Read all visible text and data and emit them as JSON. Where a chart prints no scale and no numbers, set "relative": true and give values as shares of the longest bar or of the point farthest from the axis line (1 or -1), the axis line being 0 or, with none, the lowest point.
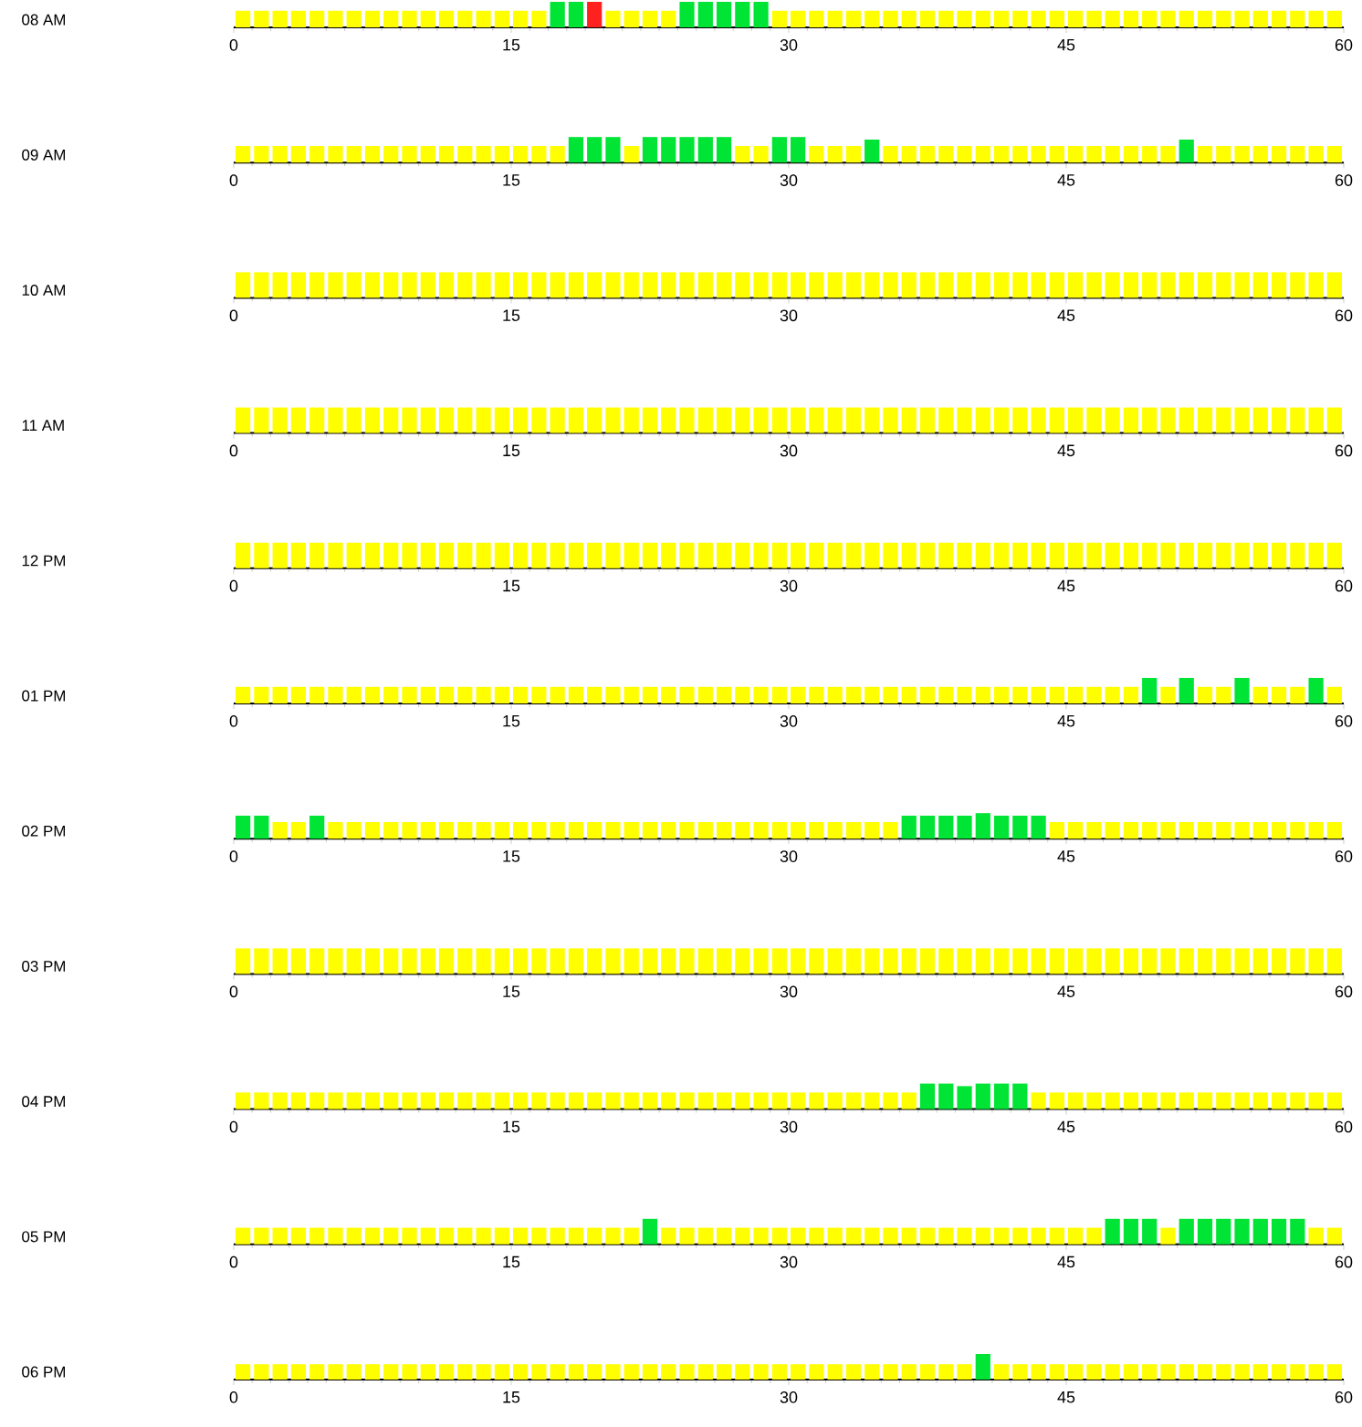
{
  "chart_data": [
    {
      "type": "bar",
      "relative": true,
      "ylabel": "08 AM",
      "xlim": [
        0,
        60
      ],
      "xticks": [
        0,
        15,
        30,
        45,
        60
      ],
      "series": [
        {
          "color": "#ffff00",
          "x": [
            0.5,
            1.5,
            2.5,
            3.5,
            4.5,
            5.5,
            6.5,
            7.5,
            8.5,
            9.5,
            10.5,
            11.5,
            12.5,
            13.5,
            14.5,
            15.5,
            16.5,
            20.5,
            21.5,
            22.5,
            23.5,
            29.5,
            30.5,
            31.5,
            32.5,
            33.5,
            34.5,
            35.5,
            36.5,
            37.5,
            38.5,
            39.5,
            40.5,
            41.5,
            42.5,
            43.5,
            44.5,
            45.5,
            46.5,
            47.5,
            48.5,
            49.5,
            50.5,
            51.5,
            52.5,
            53.5,
            54.5,
            55.5,
            56.5,
            57.5,
            58.5,
            59.5
          ],
          "values": [
            0.65,
            0.65,
            0.65,
            0.65,
            0.65,
            0.65,
            0.65,
            0.65,
            0.65,
            0.65,
            0.65,
            0.65,
            0.65,
            0.65,
            0.65,
            0.65,
            0.65,
            0.65,
            0.65,
            0.65,
            0.65,
            0.65,
            0.65,
            0.65,
            0.65,
            0.65,
            0.65,
            0.65,
            0.65,
            0.65,
            0.65,
            0.65,
            0.65,
            0.65,
            0.65,
            0.65,
            0.65,
            0.65,
            0.65,
            0.65,
            0.65,
            0.65,
            0.65,
            0.65,
            0.65,
            0.65,
            0.65,
            0.65,
            0.65,
            0.65,
            0.65,
            0.65
          ]
        },
        {
          "color": "#00e436",
          "x": [
            17.5,
            18.5,
            24.5,
            25.5,
            26.5,
            27.5,
            28.5
          ],
          "values": [
            1,
            1,
            1,
            1,
            1,
            1,
            1
          ]
        },
        {
          "color": "#ff2020",
          "x": [
            19.5
          ],
          "values": [
            1
          ]
        }
      ]
    },
    {
      "type": "bar",
      "relative": true,
      "ylabel": "09 AM",
      "xlim": [
        0,
        60
      ],
      "xticks": [
        0,
        15,
        30,
        45,
        60
      ],
      "series": [
        {
          "color": "#ffff00",
          "x": [
            0.5,
            1.5,
            2.5,
            3.5,
            4.5,
            5.5,
            6.5,
            7.5,
            8.5,
            9.5,
            10.5,
            11.5,
            12.5,
            13.5,
            14.5,
            15.5,
            16.5,
            17.5,
            21.5,
            27.5,
            28.5,
            31.5,
            32.5,
            33.5,
            35.5,
            36.5,
            37.5,
            38.5,
            39.5,
            40.5,
            41.5,
            42.5,
            43.5,
            44.5,
            45.5,
            46.5,
            47.5,
            48.5,
            49.5,
            50.5,
            52.5,
            53.5,
            54.5,
            55.5,
            56.5,
            57.5,
            58.5,
            59.5
          ],
          "values": [
            0.65,
            0.65,
            0.65,
            0.65,
            0.65,
            0.65,
            0.65,
            0.65,
            0.65,
            0.65,
            0.65,
            0.65,
            0.65,
            0.65,
            0.65,
            0.65,
            0.65,
            0.65,
            0.65,
            0.65,
            0.65,
            0.65,
            0.65,
            0.65,
            0.65,
            0.65,
            0.65,
            0.65,
            0.65,
            0.65,
            0.65,
            0.65,
            0.65,
            0.65,
            0.65,
            0.65,
            0.65,
            0.65,
            0.65,
            0.65,
            0.65,
            0.65,
            0.65,
            0.65,
            0.65,
            0.65,
            0.65,
            0.65
          ]
        },
        {
          "color": "#00e436",
          "x": [
            18.5,
            19.5,
            20.5,
            22.5,
            23.5,
            24.5,
            25.5,
            26.5,
            29.5,
            30.5,
            34.5,
            51.5
          ],
          "values": [
            1,
            1,
            1,
            1,
            1,
            1,
            1,
            1,
            1,
            1,
            0.9,
            0.9
          ]
        }
      ]
    },
    {
      "type": "bar",
      "relative": true,
      "ylabel": "10 AM",
      "xlim": [
        0,
        60
      ],
      "xticks": [
        0,
        15,
        30,
        45,
        60
      ],
      "series": [
        {
          "color": "#ffff00",
          "x": [
            0.5,
            1.5,
            2.5,
            3.5,
            4.5,
            5.5,
            6.5,
            7.5,
            8.5,
            9.5,
            10.5,
            11.5,
            12.5,
            13.5,
            14.5,
            15.5,
            16.5,
            17.5,
            18.5,
            19.5,
            20.5,
            21.5,
            22.5,
            23.5,
            24.5,
            25.5,
            26.5,
            27.5,
            28.5,
            29.5,
            30.5,
            31.5,
            32.5,
            33.5,
            34.5,
            35.5,
            36.5,
            37.5,
            38.5,
            39.5,
            40.5,
            41.5,
            42.5,
            43.5,
            44.5,
            45.5,
            46.5,
            47.5,
            48.5,
            49.5,
            50.5,
            51.5,
            52.5,
            53.5,
            54.5,
            55.5,
            56.5,
            57.5,
            58.5,
            59.5
          ],
          "values": [
            1,
            1,
            1,
            1,
            1,
            1,
            1,
            1,
            1,
            1,
            1,
            1,
            1,
            1,
            1,
            1,
            1,
            1,
            1,
            1,
            1,
            1,
            1,
            1,
            1,
            1,
            1,
            1,
            1,
            1,
            1,
            1,
            1,
            1,
            1,
            1,
            1,
            1,
            1,
            1,
            1,
            1,
            1,
            1,
            1,
            1,
            1,
            1,
            1,
            1,
            1,
            1,
            1,
            1,
            1,
            1,
            1,
            1,
            1,
            1
          ]
        }
      ]
    },
    {
      "type": "bar",
      "relative": true,
      "ylabel": "11 AM",
      "xlim": [
        0,
        60
      ],
      "xticks": [
        0,
        15,
        30,
        45,
        60
      ],
      "series": [
        {
          "color": "#ffff00",
          "x": [
            0.5,
            1.5,
            2.5,
            3.5,
            4.5,
            5.5,
            6.5,
            7.5,
            8.5,
            9.5,
            10.5,
            11.5,
            12.5,
            13.5,
            14.5,
            15.5,
            16.5,
            17.5,
            18.5,
            19.5,
            20.5,
            21.5,
            22.5,
            23.5,
            24.5,
            25.5,
            26.5,
            27.5,
            28.5,
            29.5,
            30.5,
            31.5,
            32.5,
            33.5,
            34.5,
            35.5,
            36.5,
            37.5,
            38.5,
            39.5,
            40.5,
            41.5,
            42.5,
            43.5,
            44.5,
            45.5,
            46.5,
            47.5,
            48.5,
            49.5,
            50.5,
            51.5,
            52.5,
            53.5,
            54.5,
            55.5,
            56.5,
            57.5,
            58.5,
            59.5
          ],
          "values": [
            1,
            1,
            1,
            1,
            1,
            1,
            1,
            1,
            1,
            1,
            1,
            1,
            1,
            1,
            1,
            1,
            1,
            1,
            1,
            1,
            1,
            1,
            1,
            1,
            1,
            1,
            1,
            1,
            1,
            1,
            1,
            1,
            1,
            1,
            1,
            1,
            1,
            1,
            1,
            1,
            1,
            1,
            1,
            1,
            1,
            1,
            1,
            1,
            1,
            1,
            1,
            1,
            1,
            1,
            1,
            1,
            1,
            1,
            1,
            1
          ]
        }
      ]
    },
    {
      "type": "bar",
      "relative": true,
      "ylabel": "12 PM",
      "xlim": [
        0,
        60
      ],
      "xticks": [
        0,
        15,
        30,
        45,
        60
      ],
      "series": [
        {
          "color": "#ffff00",
          "x": [
            0.5,
            1.5,
            2.5,
            3.5,
            4.5,
            5.5,
            6.5,
            7.5,
            8.5,
            9.5,
            10.5,
            11.5,
            12.5,
            13.5,
            14.5,
            15.5,
            16.5,
            17.5,
            18.5,
            19.5,
            20.5,
            21.5,
            22.5,
            23.5,
            24.5,
            25.5,
            26.5,
            27.5,
            28.5,
            29.5,
            30.5,
            31.5,
            32.5,
            33.5,
            34.5,
            35.5,
            36.5,
            37.5,
            38.5,
            39.5,
            40.5,
            41.5,
            42.5,
            43.5,
            44.5,
            45.5,
            46.5,
            47.5,
            48.5,
            49.5,
            50.5,
            51.5,
            52.5,
            53.5,
            54.5,
            55.5,
            56.5,
            57.5,
            58.5,
            59.5
          ],
          "values": [
            1,
            1,
            1,
            1,
            1,
            1,
            1,
            1,
            1,
            1,
            1,
            1,
            1,
            1,
            1,
            1,
            1,
            1,
            1,
            1,
            1,
            1,
            1,
            1,
            1,
            1,
            1,
            1,
            1,
            1,
            1,
            1,
            1,
            1,
            1,
            1,
            1,
            1,
            1,
            1,
            1,
            1,
            1,
            1,
            1,
            1,
            1,
            1,
            1,
            1,
            1,
            1,
            1,
            1,
            1,
            1,
            1,
            1,
            1,
            1
          ]
        }
      ]
    },
    {
      "type": "bar",
      "relative": true,
      "ylabel": "01 PM",
      "xlim": [
        0,
        60
      ],
      "xticks": [
        0,
        15,
        30,
        45,
        60
      ],
      "series": [
        {
          "color": "#ffff00",
          "x": [
            0.5,
            1.5,
            2.5,
            3.5,
            4.5,
            5.5,
            6.5,
            7.5,
            8.5,
            9.5,
            10.5,
            11.5,
            12.5,
            13.5,
            14.5,
            15.5,
            16.5,
            17.5,
            18.5,
            19.5,
            20.5,
            21.5,
            22.5,
            23.5,
            24.5,
            25.5,
            26.5,
            27.5,
            28.5,
            29.5,
            30.5,
            31.5,
            32.5,
            33.5,
            34.5,
            35.5,
            36.5,
            37.5,
            38.5,
            39.5,
            40.5,
            41.5,
            42.5,
            43.5,
            44.5,
            45.5,
            46.5,
            47.5,
            48.5,
            50.5,
            52.5,
            53.5,
            55.5,
            56.5,
            57.5,
            59.5
          ],
          "values": [
            0.65,
            0.65,
            0.65,
            0.65,
            0.65,
            0.65,
            0.65,
            0.65,
            0.65,
            0.65,
            0.65,
            0.65,
            0.65,
            0.65,
            0.65,
            0.65,
            0.65,
            0.65,
            0.65,
            0.65,
            0.65,
            0.65,
            0.65,
            0.65,
            0.65,
            0.65,
            0.65,
            0.65,
            0.65,
            0.65,
            0.65,
            0.65,
            0.65,
            0.65,
            0.65,
            0.65,
            0.65,
            0.65,
            0.65,
            0.65,
            0.65,
            0.65,
            0.65,
            0.65,
            0.65,
            0.65,
            0.65,
            0.65,
            0.65,
            0.65,
            0.65,
            0.65,
            0.65,
            0.65,
            0.65,
            0.65
          ]
        },
        {
          "color": "#00e436",
          "x": [
            49.5,
            51.5,
            54.5,
            58.5
          ],
          "values": [
            1,
            1,
            1,
            1
          ]
        }
      ]
    },
    {
      "type": "bar",
      "relative": true,
      "ylabel": "02 PM",
      "xlim": [
        0,
        60
      ],
      "xticks": [
        0,
        15,
        30,
        45,
        60
      ],
      "series": [
        {
          "color": "#ffff00",
          "x": [
            2.5,
            3.5,
            5.5,
            6.5,
            7.5,
            8.5,
            9.5,
            10.5,
            11.5,
            12.5,
            13.5,
            14.5,
            15.5,
            16.5,
            17.5,
            18.5,
            19.5,
            20.5,
            21.5,
            22.5,
            23.5,
            24.5,
            25.5,
            26.5,
            27.5,
            28.5,
            29.5,
            30.5,
            31.5,
            32.5,
            33.5,
            34.5,
            35.5,
            44.5,
            45.5,
            46.5,
            47.5,
            48.5,
            49.5,
            50.5,
            51.5,
            52.5,
            53.5,
            54.5,
            55.5,
            56.5,
            57.5,
            58.5,
            59.5
          ],
          "values": [
            0.65,
            0.65,
            0.65,
            0.65,
            0.65,
            0.65,
            0.65,
            0.65,
            0.65,
            0.65,
            0.65,
            0.65,
            0.65,
            0.65,
            0.65,
            0.65,
            0.65,
            0.65,
            0.65,
            0.65,
            0.65,
            0.65,
            0.65,
            0.65,
            0.65,
            0.65,
            0.65,
            0.65,
            0.65,
            0.65,
            0.65,
            0.65,
            0.65,
            0.65,
            0.65,
            0.65,
            0.65,
            0.65,
            0.65,
            0.65,
            0.65,
            0.65,
            0.65,
            0.65,
            0.65,
            0.65,
            0.65,
            0.65,
            0.65
          ]
        },
        {
          "color": "#00e436",
          "x": [
            0.5,
            1.5,
            4.5,
            36.5,
            37.5,
            38.5,
            39.5,
            40.5,
            41.5,
            42.5,
            43.5
          ],
          "values": [
            0.9,
            0.9,
            0.9,
            0.9,
            0.9,
            0.9,
            0.9,
            1,
            0.9,
            0.9,
            0.9
          ]
        }
      ]
    },
    {
      "type": "bar",
      "relative": true,
      "ylabel": "03 PM",
      "xlim": [
        0,
        60
      ],
      "xticks": [
        0,
        15,
        30,
        45,
        60
      ],
      "series": [
        {
          "color": "#ffff00",
          "x": [
            0.5,
            1.5,
            2.5,
            3.5,
            4.5,
            5.5,
            6.5,
            7.5,
            8.5,
            9.5,
            10.5,
            11.5,
            12.5,
            13.5,
            14.5,
            15.5,
            16.5,
            17.5,
            18.5,
            19.5,
            20.5,
            21.5,
            22.5,
            23.5,
            24.5,
            25.5,
            26.5,
            27.5,
            28.5,
            29.5,
            30.5,
            31.5,
            32.5,
            33.5,
            34.5,
            35.5,
            36.5,
            37.5,
            38.5,
            39.5,
            40.5,
            41.5,
            42.5,
            43.5,
            44.5,
            45.5,
            46.5,
            47.5,
            48.5,
            49.5,
            50.5,
            51.5,
            52.5,
            53.5,
            54.5,
            55.5,
            56.5,
            57.5,
            58.5,
            59.5
          ],
          "values": [
            1,
            1,
            1,
            1,
            1,
            1,
            1,
            1,
            1,
            1,
            1,
            1,
            1,
            1,
            1,
            1,
            1,
            1,
            1,
            1,
            1,
            1,
            1,
            1,
            1,
            1,
            1,
            1,
            1,
            1,
            1,
            1,
            1,
            1,
            1,
            1,
            1,
            1,
            1,
            1,
            1,
            1,
            1,
            1,
            1,
            1,
            1,
            1,
            1,
            1,
            1,
            1,
            1,
            1,
            1,
            1,
            1,
            1,
            1,
            1
          ]
        }
      ]
    },
    {
      "type": "bar",
      "relative": true,
      "ylabel": "04 PM",
      "xlim": [
        0,
        60
      ],
      "xticks": [
        0,
        15,
        30,
        45,
        60
      ],
      "series": [
        {
          "color": "#ffff00",
          "x": [
            0.5,
            1.5,
            2.5,
            3.5,
            4.5,
            5.5,
            6.5,
            7.5,
            8.5,
            9.5,
            10.5,
            11.5,
            12.5,
            13.5,
            14.5,
            15.5,
            16.5,
            17.5,
            18.5,
            19.5,
            20.5,
            21.5,
            22.5,
            23.5,
            24.5,
            25.5,
            26.5,
            27.5,
            28.5,
            29.5,
            30.5,
            31.5,
            32.5,
            33.5,
            34.5,
            35.5,
            36.5,
            43.5,
            44.5,
            45.5,
            46.5,
            47.5,
            48.5,
            49.5,
            50.5,
            51.5,
            52.5,
            53.5,
            54.5,
            55.5,
            56.5,
            57.5,
            58.5,
            59.5
          ],
          "values": [
            0.65,
            0.65,
            0.65,
            0.65,
            0.65,
            0.65,
            0.65,
            0.65,
            0.65,
            0.65,
            0.65,
            0.65,
            0.65,
            0.65,
            0.65,
            0.65,
            0.65,
            0.65,
            0.65,
            0.65,
            0.65,
            0.65,
            0.65,
            0.65,
            0.65,
            0.65,
            0.65,
            0.65,
            0.65,
            0.65,
            0.65,
            0.65,
            0.65,
            0.65,
            0.65,
            0.65,
            0.65,
            0.65,
            0.65,
            0.65,
            0.65,
            0.65,
            0.65,
            0.65,
            0.65,
            0.65,
            0.65,
            0.65,
            0.65,
            0.65,
            0.65,
            0.65,
            0.65,
            0.65
          ]
        },
        {
          "color": "#00e436",
          "x": [
            37.5,
            38.5,
            39.5,
            40.5,
            41.5,
            42.5
          ],
          "values": [
            1,
            1,
            0.9,
            1,
            1,
            1
          ]
        }
      ]
    },
    {
      "type": "bar",
      "relative": true,
      "ylabel": "05 PM",
      "xlim": [
        0,
        60
      ],
      "xticks": [
        0,
        15,
        30,
        45,
        60
      ],
      "series": [
        {
          "color": "#ffff00",
          "x": [
            0.5,
            1.5,
            2.5,
            3.5,
            4.5,
            5.5,
            6.5,
            7.5,
            8.5,
            9.5,
            10.5,
            11.5,
            12.5,
            13.5,
            14.5,
            15.5,
            16.5,
            17.5,
            18.5,
            19.5,
            20.5,
            21.5,
            23.5,
            24.5,
            25.5,
            26.5,
            27.5,
            28.5,
            29.5,
            30.5,
            31.5,
            32.5,
            33.5,
            34.5,
            35.5,
            36.5,
            37.5,
            38.5,
            39.5,
            40.5,
            41.5,
            42.5,
            43.5,
            44.5,
            45.5,
            46.5,
            50.5,
            58.5,
            59.5
          ],
          "values": [
            0.65,
            0.65,
            0.65,
            0.65,
            0.65,
            0.65,
            0.65,
            0.65,
            0.65,
            0.65,
            0.65,
            0.65,
            0.65,
            0.65,
            0.65,
            0.65,
            0.65,
            0.65,
            0.65,
            0.65,
            0.65,
            0.65,
            0.65,
            0.65,
            0.65,
            0.65,
            0.65,
            0.65,
            0.65,
            0.65,
            0.65,
            0.65,
            0.65,
            0.65,
            0.65,
            0.65,
            0.65,
            0.65,
            0.65,
            0.65,
            0.65,
            0.65,
            0.65,
            0.65,
            0.65,
            0.65,
            0.65,
            0.65,
            0.65
          ]
        },
        {
          "color": "#00e436",
          "x": [
            22.5,
            47.5,
            48.5,
            49.5,
            51.5,
            52.5,
            53.5,
            54.5,
            55.5,
            56.5,
            57.5
          ],
          "values": [
            1,
            1,
            1,
            1,
            1,
            1,
            1,
            1,
            1,
            1,
            1
          ]
        }
      ]
    },
    {
      "type": "bar",
      "relative": true,
      "ylabel": "06 PM",
      "xlim": [
        0,
        60
      ],
      "xticks": [
        0,
        15,
        30,
        45,
        60
      ],
      "series": [
        {
          "color": "#ffff00",
          "x": [
            0.5,
            1.5,
            2.5,
            3.5,
            4.5,
            5.5,
            6.5,
            7.5,
            8.5,
            9.5,
            10.5,
            11.5,
            12.5,
            13.5,
            14.5,
            15.5,
            16.5,
            17.5,
            18.5,
            19.5,
            20.5,
            21.5,
            22.5,
            23.5,
            24.5,
            25.5,
            26.5,
            27.5,
            28.5,
            29.5,
            30.5,
            31.5,
            32.5,
            33.5,
            34.5,
            35.5,
            36.5,
            37.5,
            38.5,
            39.5,
            41.5,
            42.5,
            43.5,
            44.5,
            45.5,
            46.5,
            47.5,
            48.5,
            49.5,
            50.5,
            51.5,
            52.5,
            53.5,
            54.5,
            55.5,
            56.5,
            57.5,
            58.5,
            59.5
          ],
          "values": [
            0.6,
            0.6,
            0.6,
            0.6,
            0.6,
            0.6,
            0.6,
            0.6,
            0.6,
            0.6,
            0.6,
            0.6,
            0.6,
            0.6,
            0.6,
            0.6,
            0.6,
            0.6,
            0.6,
            0.6,
            0.6,
            0.6,
            0.6,
            0.6,
            0.6,
            0.6,
            0.6,
            0.6,
            0.6,
            0.6,
            0.6,
            0.6,
            0.6,
            0.6,
            0.6,
            0.6,
            0.6,
            0.6,
            0.6,
            0.6,
            0.6,
            0.6,
            0.6,
            0.6,
            0.6,
            0.6,
            0.6,
            0.6,
            0.6,
            0.6,
            0.6,
            0.6,
            0.6,
            0.6,
            0.6,
            0.6,
            0.6,
            0.6,
            0.6
          ]
        },
        {
          "color": "#00e436",
          "x": [
            40.5
          ],
          "values": [
            1
          ]
        }
      ]
    }
  ]
}
